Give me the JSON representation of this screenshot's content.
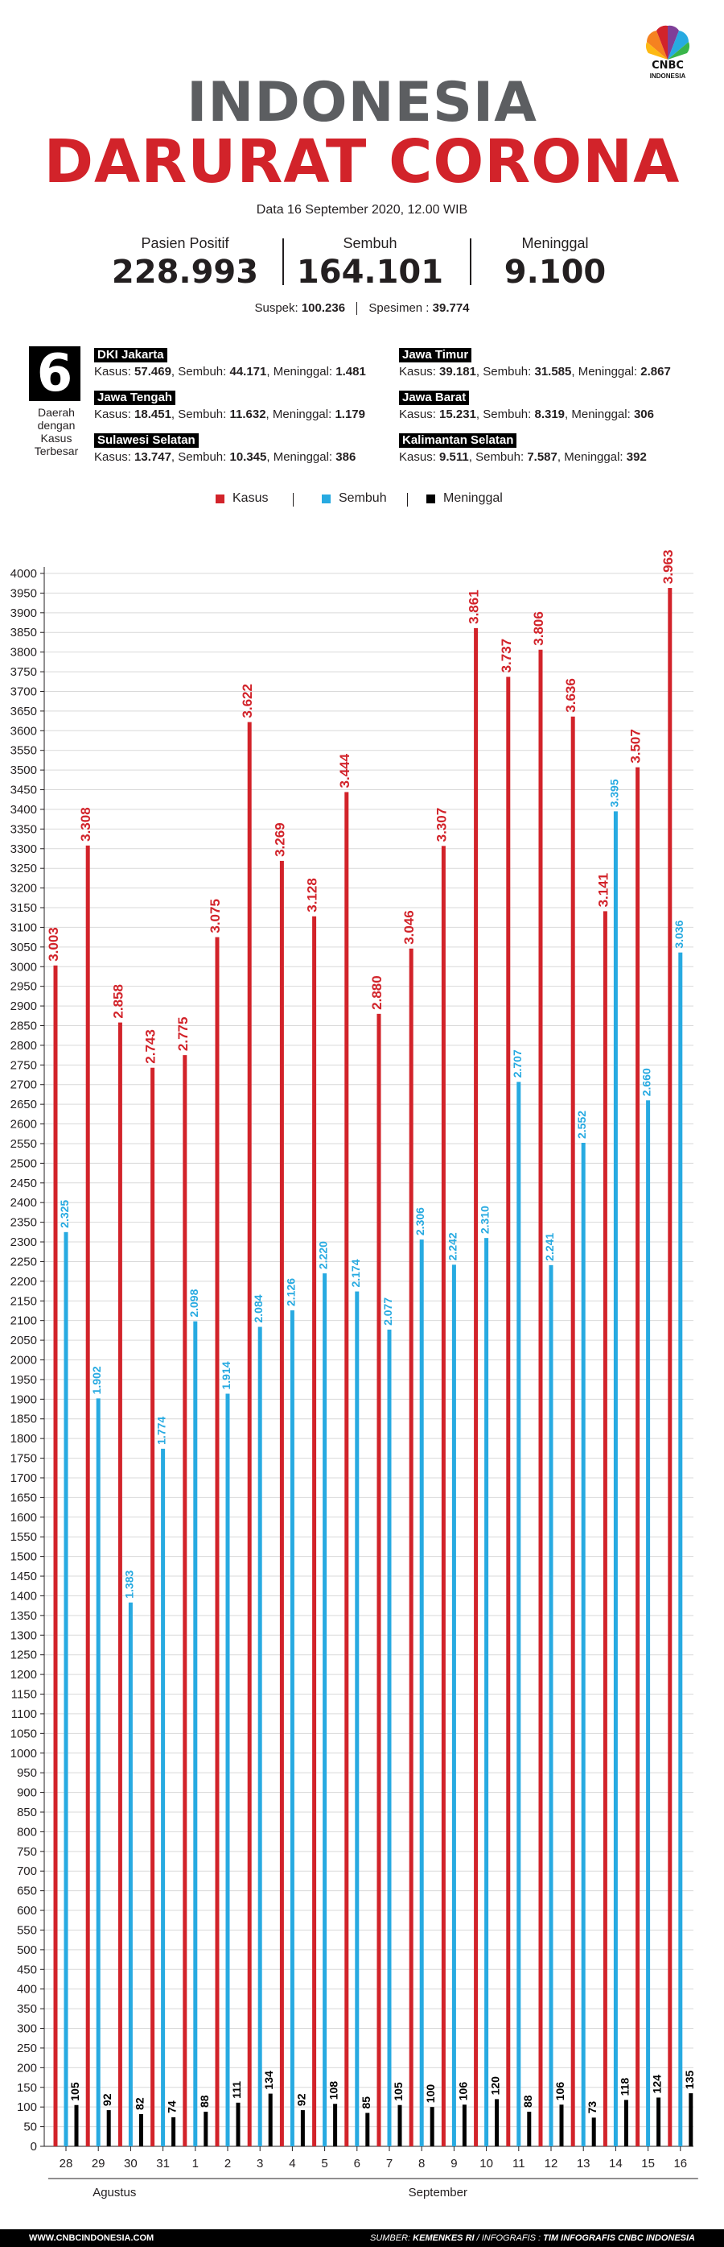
{
  "logo": {
    "text": "CNBC",
    "sub": "INDONESIA"
  },
  "title_line1": "INDONESIA",
  "title_line2": "DARURAT CORONA",
  "dateline": "Data 16 September 2020, 12.00 WIB",
  "stats": {
    "positif": {
      "label": "Pasien Positif",
      "value": "228.993"
    },
    "sembuh": {
      "label": "Sembuh",
      "value": "164.101"
    },
    "meninggal": {
      "label": "Meninggal",
      "value": "9.100"
    }
  },
  "suspek": {
    "label": "Suspek:",
    "value": "100.236",
    "spesimen_label": "Spesimen :",
    "spesimen_value": "39.774"
  },
  "regions_box": {
    "number": "6",
    "caption": "Daerah dengan Kasus Terbesar"
  },
  "regions": [
    {
      "name": "DKI Jakarta",
      "kasus": "57.469",
      "sembuh": "44.171",
      "meninggal": "1.481"
    },
    {
      "name": "Jawa Tengah",
      "kasus": "18.451",
      "sembuh": "11.632",
      "meninggal": "1.179"
    },
    {
      "name": "Sulawesi Selatan",
      "kasus": "13.747",
      "sembuh": "10.345",
      "meninggal": "386"
    },
    {
      "name": "Jawa Timur",
      "kasus": "39.181",
      "sembuh": "31.585",
      "meninggal": "2.867"
    },
    {
      "name": "Jawa Barat",
      "kasus": "15.231",
      "sembuh": "8.319",
      "meninggal": "306"
    },
    {
      "name": "Kalimantan Selatan",
      "kasus": "9.511",
      "sembuh": "7.587",
      "meninggal": "392"
    }
  ],
  "region_labels": {
    "kasus": "Kasus:",
    "sembuh": "Sembuh:",
    "meninggal": "Meninggal:"
  },
  "colors": {
    "kasus": "#d2232a",
    "sembuh": "#27aae1",
    "meninggal": "#000000",
    "title_grey": "#5c5e61"
  },
  "chart_data": {
    "type": "bar",
    "categories": [
      "28",
      "29",
      "30",
      "31",
      "1",
      "2",
      "3",
      "4",
      "5",
      "6",
      "7",
      "8",
      "9",
      "10",
      "11",
      "12",
      "13",
      "14",
      "15",
      "16"
    ],
    "month_labels": [
      {
        "label": "Agustus"
      },
      {
        "label": "September"
      }
    ],
    "series": [
      {
        "name": "Kasus",
        "values": [
          3003,
          3308,
          2858,
          2743,
          2775,
          3075,
          3622,
          3269,
          3128,
          3444,
          2880,
          3046,
          3307,
          3861,
          3737,
          3806,
          3636,
          3141,
          3507,
          3963
        ],
        "labels": [
          "3.003",
          "3.308",
          "2.858",
          "2.743",
          "2.775",
          "3.075",
          "3.622",
          "3.269",
          "3.128",
          "3.444",
          "2.880",
          "3.046",
          "3.307",
          "3.861",
          "3.737",
          "3.806",
          "3.636",
          "3.141",
          "3.507",
          "3.963"
        ]
      },
      {
        "name": "Sembuh",
        "values": [
          2325,
          1902,
          1383,
          1774,
          2098,
          1914,
          2084,
          2126,
          2220,
          2174,
          2077,
          2306,
          2242,
          2310,
          2707,
          2241,
          2552,
          3395,
          2660,
          3036
        ],
        "labels": [
          "2.325",
          "1.902",
          "1.383",
          "1.774",
          "2.098",
          "1.914",
          "2.084",
          "2.126",
          "2.220",
          "2.174",
          "2.077",
          "2.306",
          "2.242",
          "2.310",
          "2.707",
          "2.241",
          "2.552",
          "3.395",
          "2.660",
          "3.036"
        ]
      },
      {
        "name": "Meninggal",
        "values": [
          105,
          92,
          82,
          74,
          88,
          111,
          134,
          92,
          108,
          85,
          105,
          100,
          106,
          120,
          88,
          106,
          73,
          118,
          124,
          135
        ],
        "labels": [
          "105",
          "92",
          "82",
          "74",
          "88",
          "111",
          "134",
          "92",
          "108",
          "85",
          "105",
          "100",
          "106",
          "120",
          "88",
          "106",
          "73",
          "118",
          "124",
          "135"
        ]
      }
    ],
    "ylim": [
      0,
      4000
    ],
    "y_ticks": [
      0,
      50,
      100,
      150,
      200,
      250,
      300,
      350,
      400,
      450,
      500,
      550,
      600,
      650,
      700,
      750,
      800,
      850,
      900,
      950,
      1000,
      1050,
      1100,
      1150,
      1200,
      1250,
      1300,
      1350,
      1400,
      1450,
      1500,
      1550,
      1600,
      1650,
      1700,
      1750,
      1800,
      1850,
      1900,
      1950,
      2000,
      2050,
      2100,
      2150,
      2200,
      2250,
      2300,
      2350,
      2400,
      2450,
      2500,
      2550,
      2600,
      2650,
      2700,
      2750,
      2800,
      2850,
      2900,
      2950,
      3000,
      3050,
      3100,
      3150,
      3200,
      3250,
      3300,
      3350,
      3400,
      3450,
      3500,
      3550,
      3600,
      3650,
      3700,
      3750,
      3800,
      3850,
      3900,
      3950,
      4000
    ],
    "grid": true,
    "legend": "top"
  },
  "footer": {
    "site": "WWW.CNBCINDONESIA.COM",
    "source_label": "SUMBER:",
    "source": "KEMENKES RI",
    "infografis_label": "/ INFOGRAFIS :",
    "infografis": "TIM INFOGRAFIS CNBC INDONESIA"
  }
}
